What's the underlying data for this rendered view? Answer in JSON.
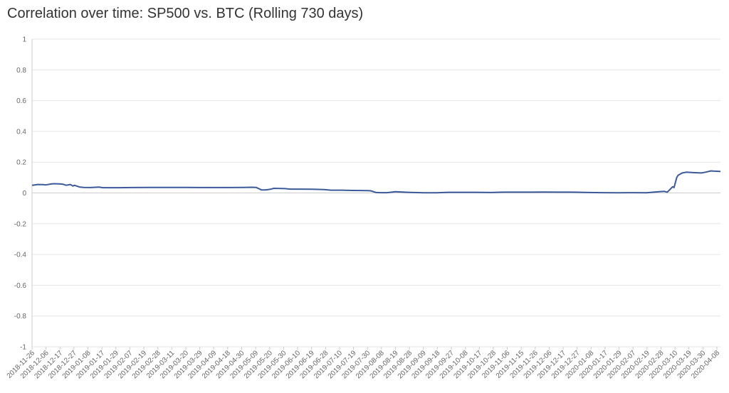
{
  "chart_data": {
    "type": "line",
    "title": "Correlation over time: SP500 vs. BTC (Rolling 730 days)",
    "xlabel": "",
    "ylabel": "",
    "ylim": [
      -1,
      1
    ],
    "yticks": [
      "1",
      "0.8",
      "0.6",
      "0.4",
      "0.2",
      "0",
      "-0.2",
      "-0.4",
      "-0.6",
      "-0.8",
      "-1"
    ],
    "ytick_values": [
      1,
      0.8,
      0.6,
      0.4,
      0.2,
      0,
      -0.2,
      -0.4,
      -0.6,
      -0.8,
      -1
    ],
    "xticks": [
      "2018-11-26",
      "2018-12-06",
      "2018-12-17",
      "2018-12-27",
      "2019-01-08",
      "2019-01-17",
      "2019-01-29",
      "2019-02-07",
      "2019-02-19",
      "2019-02-28",
      "2019-03-11",
      "2019-03-20",
      "2019-03-29",
      "2019-04-09",
      "2019-04-18",
      "2019-04-30",
      "2019-05-09",
      "2019-05-20",
      "2019-05-30",
      "2019-06-10",
      "2019-06-19",
      "2019-06-28",
      "2019-07-10",
      "2019-07-19",
      "2019-07-30",
      "2019-08-08",
      "2019-08-19",
      "2019-08-28",
      "2019-09-09",
      "2019-09-18",
      "2019-09-27",
      "2019-10-08",
      "2019-10-17",
      "2019-10-28",
      "2019-11-06",
      "2019-11-15",
      "2019-11-26",
      "2019-12-06",
      "2019-12-17",
      "2019-12-27",
      "2020-01-08",
      "2020-01-17",
      "2020-01-29",
      "2020-02-07",
      "2020-02-19",
      "2020-02-28",
      "2020-03-10",
      "2020-03-19",
      "2020-03-30",
      "2020-04-08"
    ],
    "grid": true,
    "colors": {
      "line": "#3c5a9a",
      "grid": "#e6e6e6",
      "zero": "#cccccc",
      "axis": "#cccccc"
    },
    "series": [
      {
        "x": [
          "2018-11-26",
          "2018-11-28",
          "2018-11-30",
          "2018-12-04",
          "2018-12-06",
          "2018-12-10",
          "2018-12-12",
          "2018-12-17",
          "2018-12-19",
          "2018-12-21",
          "2018-12-24",
          "2018-12-26",
          "2018-12-27",
          "2018-12-31",
          "2019-01-03",
          "2019-01-08",
          "2019-01-14",
          "2019-01-17",
          "2019-01-29",
          "2019-02-07",
          "2019-02-19",
          "2019-02-28",
          "2019-03-11",
          "2019-03-20",
          "2019-03-29",
          "2019-04-09",
          "2019-04-18",
          "2019-04-30",
          "2019-05-06",
          "2019-05-09",
          "2019-05-13",
          "2019-05-16",
          "2019-05-20",
          "2019-05-22",
          "2019-05-30",
          "2019-06-03",
          "2019-06-10",
          "2019-06-19",
          "2019-06-28",
          "2019-07-03",
          "2019-07-10",
          "2019-07-19",
          "2019-07-30",
          "2019-08-01",
          "2019-08-05",
          "2019-08-08",
          "2019-08-13",
          "2019-08-19",
          "2019-08-28",
          "2019-09-09",
          "2019-09-18",
          "2019-09-27",
          "2019-10-08",
          "2019-10-17",
          "2019-10-28",
          "2019-11-06",
          "2019-11-15",
          "2019-11-26",
          "2019-12-06",
          "2019-12-17",
          "2019-12-27",
          "2020-01-08",
          "2020-01-17",
          "2020-01-29",
          "2020-02-07",
          "2020-02-19",
          "2020-02-24",
          "2020-02-28",
          "2020-03-03",
          "2020-03-05",
          "2020-03-09",
          "2020-03-10",
          "2020-03-12",
          "2020-03-13",
          "2020-03-16",
          "2020-03-19",
          "2020-03-24",
          "2020-03-30",
          "2020-04-02",
          "2020-04-06",
          "2020-04-08",
          "2020-04-13"
        ],
        "y": [
          0.05,
          0.052,
          0.055,
          0.054,
          0.052,
          0.058,
          0.06,
          0.058,
          0.056,
          0.05,
          0.055,
          0.045,
          0.05,
          0.038,
          0.036,
          0.035,
          0.038,
          0.034,
          0.034,
          0.035,
          0.036,
          0.036,
          0.036,
          0.036,
          0.035,
          0.035,
          0.035,
          0.036,
          0.037,
          0.036,
          0.02,
          0.02,
          0.025,
          0.03,
          0.028,
          0.025,
          0.025,
          0.024,
          0.022,
          0.018,
          0.018,
          0.016,
          0.015,
          0.014,
          0.003,
          0.002,
          0.002,
          0.008,
          0.004,
          0.001,
          0.001,
          0.004,
          0.004,
          0.004,
          0.003,
          0.005,
          0.005,
          0.005,
          0.006,
          0.005,
          0.005,
          0.003,
          0.002,
          0.001,
          0.002,
          0.001,
          0.005,
          0.008,
          0.01,
          0.005,
          0.04,
          0.035,
          0.1,
          0.115,
          0.13,
          0.135,
          0.132,
          0.13,
          0.135,
          0.143,
          0.142,
          0.14
        ]
      }
    ]
  }
}
